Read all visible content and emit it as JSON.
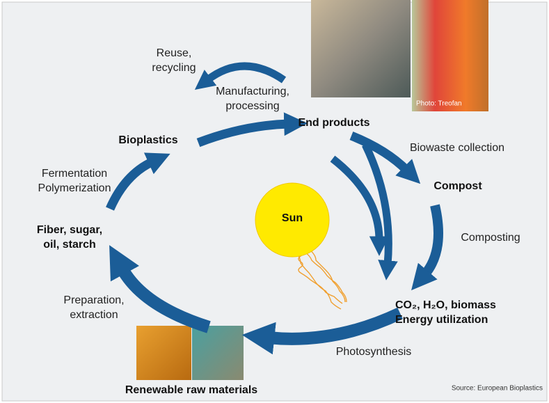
{
  "labels": {
    "reuse": [
      "Reuse,",
      "recycling"
    ],
    "manufacturing": [
      "Manufacturing,",
      "processing"
    ],
    "end_products": "End products",
    "bioplastics": "Bioplastics",
    "biowaste": "Biowaste collection",
    "compost": "Compost",
    "fermentation": [
      "Fermentation",
      "Polymerization"
    ],
    "fiber": [
      "Fiber, sugar,",
      "oil, starch"
    ],
    "sun": "Sun",
    "composting": "Composting",
    "preparation": [
      "Preparation,",
      "extraction"
    ],
    "co2": [
      "CO₂, H₂O, biomass",
      "Energy utilization"
    ],
    "photosynthesis": "Photosynthesis",
    "renewable": "Renewable raw materials",
    "source": "Source: European Bioplastics",
    "photo_credit": "Photo: Treofan"
  }
}
